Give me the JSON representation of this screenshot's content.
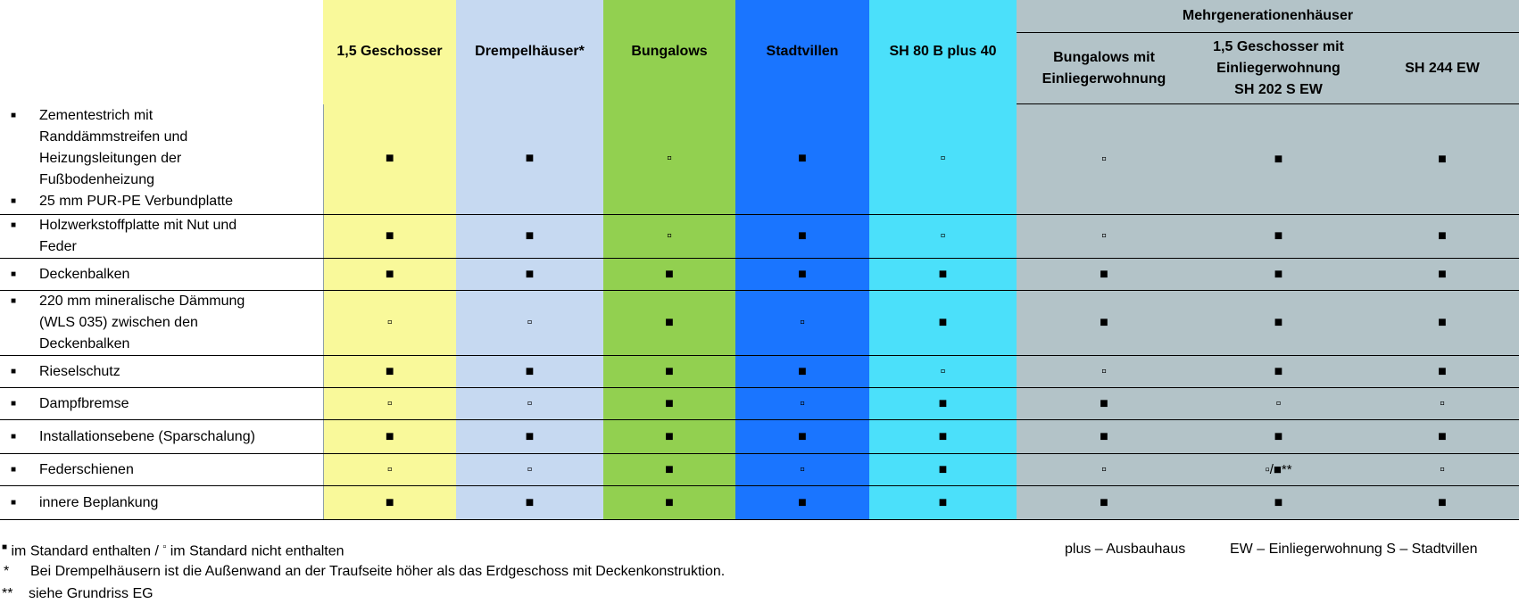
{
  "header": {
    "group_title": "Mehrgenerationenhäuser",
    "columns": [
      "1,5 Geschosser",
      "Drempelhäuser*",
      "Bungalows",
      "Stadtvillen",
      "SH 80 B plus 40"
    ],
    "group_columns": [
      [
        "Bungalows mit",
        "Einliegerwohnung"
      ],
      [
        "1,5 Geschosser mit",
        "Einliegerwohnung",
        "SH 202 S EW"
      ],
      [
        "SH 244 EW"
      ]
    ]
  },
  "rows": [
    {
      "features": [
        [
          "Zementestrich mit",
          "Randdämmstreifen und",
          "Heizungsleitungen der",
          "Fußbodenheizung"
        ],
        [
          "25 mm PUR-PE Verbundplatte"
        ]
      ],
      "marks": [
        "■",
        "■",
        "▫",
        "■",
        "▫",
        "▫",
        "■",
        "■"
      ]
    },
    {
      "features": [
        [
          "Holzwerkstoffplatte mit Nut und",
          "Feder"
        ]
      ],
      "marks": [
        "■",
        "■",
        "▫",
        "■",
        "▫",
        "▫",
        "■",
        "■"
      ]
    },
    {
      "features": [
        [
          "Deckenbalken"
        ]
      ],
      "marks": [
        "■",
        "■",
        "■",
        "■",
        "■",
        "■",
        "■",
        "■"
      ]
    },
    {
      "features": [
        [
          "220 mm mineralische Dämmung",
          "(WLS 035) zwischen den",
          "Deckenbalken"
        ]
      ],
      "marks": [
        "▫",
        "▫",
        "■",
        "▫",
        "■",
        "■",
        "■",
        "■"
      ]
    },
    {
      "features": [
        [
          "Rieselschutz"
        ]
      ],
      "marks": [
        "■",
        "■",
        "■",
        "■",
        "▫",
        "▫",
        "■",
        "■"
      ]
    },
    {
      "features": [
        [
          "Dampfbremse"
        ]
      ],
      "marks": [
        "▫",
        "▫",
        "■",
        "▫",
        "■",
        "■",
        "▫",
        "▫"
      ]
    },
    {
      "features": [
        [
          "Installationsebene (Sparschalung)"
        ]
      ],
      "marks": [
        "■",
        "■",
        "■",
        "■",
        "■",
        "■",
        "■",
        "■"
      ]
    },
    {
      "features": [
        [
          "Federschienen"
        ]
      ],
      "marks": [
        "▫",
        "▫",
        "■",
        "▫",
        "■",
        "▫",
        "▫/■**",
        "▫"
      ]
    },
    {
      "features": [
        [
          "innere Beplankung"
        ]
      ],
      "marks": [
        "■",
        "■",
        "■",
        "■",
        "■",
        "■",
        "■",
        "■"
      ]
    }
  ],
  "legend": {
    "bullet_marks": "■",
    "standard_text": "im Standard enthalten /",
    "empty_mark": "▫",
    "not_standard_text": "im Standard nicht enthalten",
    "plus_text": "plus – Ausbauhaus",
    "ew_text": "EW – Einliegerwohnung S – Stadtvillen",
    "note1_mark": "*",
    "note1_text": "Bei Drempelhäusern ist die Außenwand an der Traufseite höher als das Erdgeschoss mit Deckenkonstruktion.",
    "note2_mark": "**",
    "note2_text": "siehe Grundriss EG"
  },
  "colors": {
    "col1": "#f9f99a",
    "col2": "#c6d9f1",
    "col3": "#92d050",
    "col4": "#1a75ff",
    "col5": "#4be0fa",
    "group": "#b3c3c8"
  }
}
